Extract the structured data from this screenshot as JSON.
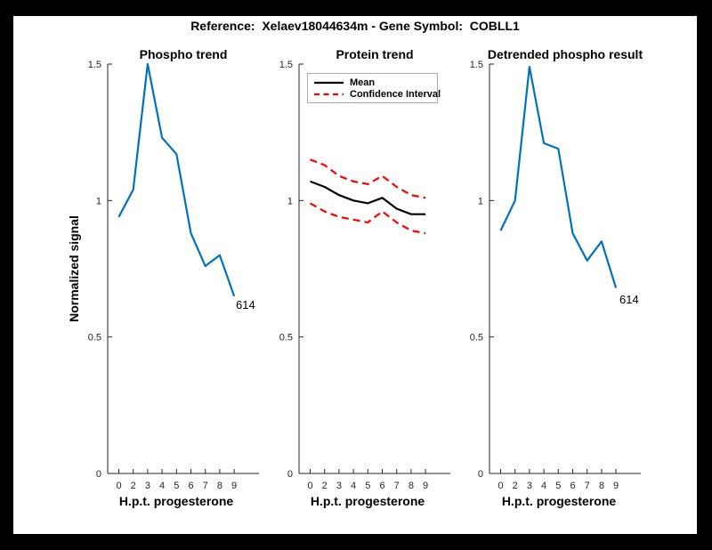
{
  "header": {
    "title": "Reference:  Xelaev18044634m - Gene Symbol:  COBLL1"
  },
  "colors": {
    "page_bg": "#000000",
    "figure_bg": "#FFFFFF",
    "axis": "#262626",
    "phospho_line": "#0072BD",
    "mean_line": "#000000",
    "ci_line": "#FF0000",
    "legend_border": "#ABABAB"
  },
  "chart_data": [
    {
      "type": "line",
      "title": "Phospho trend",
      "xlabel": "H.p.t. progesterone",
      "ylabel": "Normalized signal",
      "x_tick_labels": [
        "0",
        "2",
        "3",
        "4",
        "5",
        "6",
        "7",
        "8",
        "9"
      ],
      "y_ticks": [
        0,
        0.5,
        1,
        1.5
      ],
      "y_tick_labels": [
        "0",
        "0.5",
        "1",
        "1.5"
      ],
      "ylim": [
        0,
        1.5
      ],
      "grid": false,
      "end_label": "614",
      "series": [
        {
          "name": "Phospho trend",
          "color": "#0072BD",
          "style": "solid",
          "values": [
            0.94,
            1.04,
            1.5,
            1.23,
            1.17,
            0.88,
            0.76,
            0.8,
            0.65
          ]
        }
      ]
    },
    {
      "type": "line",
      "title": "Protein trend",
      "xlabel": "H.p.t. progesterone",
      "x_tick_labels": [
        "0",
        "2",
        "3",
        "4",
        "5",
        "6",
        "7",
        "8",
        "9"
      ],
      "y_ticks": [
        0,
        0.5,
        1,
        1.5
      ],
      "y_tick_labels": [
        "0",
        "0.5",
        "1",
        "1.5"
      ],
      "ylim": [
        0,
        1.5
      ],
      "grid": false,
      "legend": {
        "position": "top-left",
        "entries": [
          {
            "label": "Mean",
            "color": "#000000",
            "style": "solid"
          },
          {
            "label": "Confidence Interval",
            "color": "#FF0000",
            "style": "dashed"
          }
        ]
      },
      "series": [
        {
          "name": "Mean",
          "color": "#000000",
          "style": "solid",
          "values": [
            1.07,
            1.05,
            1.02,
            1.0,
            0.99,
            1.01,
            0.97,
            0.95,
            0.95
          ]
        },
        {
          "name": "Confidence Interval upper",
          "color": "#FF0000",
          "style": "dashed",
          "values": [
            1.15,
            1.13,
            1.09,
            1.07,
            1.06,
            1.09,
            1.05,
            1.02,
            1.01
          ]
        },
        {
          "name": "Confidence Interval lower",
          "color": "#FF0000",
          "style": "dashed",
          "values": [
            0.99,
            0.96,
            0.94,
            0.93,
            0.92,
            0.96,
            0.92,
            0.89,
            0.88
          ]
        }
      ]
    },
    {
      "type": "line",
      "title": "Detrended phospho result",
      "xlabel": "H.p.t. progesterone",
      "x_tick_labels": [
        "0",
        "2",
        "3",
        "4",
        "5",
        "6",
        "7",
        "8",
        "9"
      ],
      "y_ticks": [
        0,
        0.5,
        1,
        1.5
      ],
      "y_tick_labels": [
        "0",
        "0.5",
        "1",
        "1.5"
      ],
      "ylim": [
        0,
        1.5
      ],
      "grid": false,
      "end_label": "614",
      "series": [
        {
          "name": "Detrended phospho",
          "color": "#0072BD",
          "style": "solid",
          "values": [
            0.89,
            1.0,
            1.49,
            1.21,
            1.19,
            0.88,
            0.78,
            0.85,
            0.68
          ]
        }
      ]
    }
  ]
}
